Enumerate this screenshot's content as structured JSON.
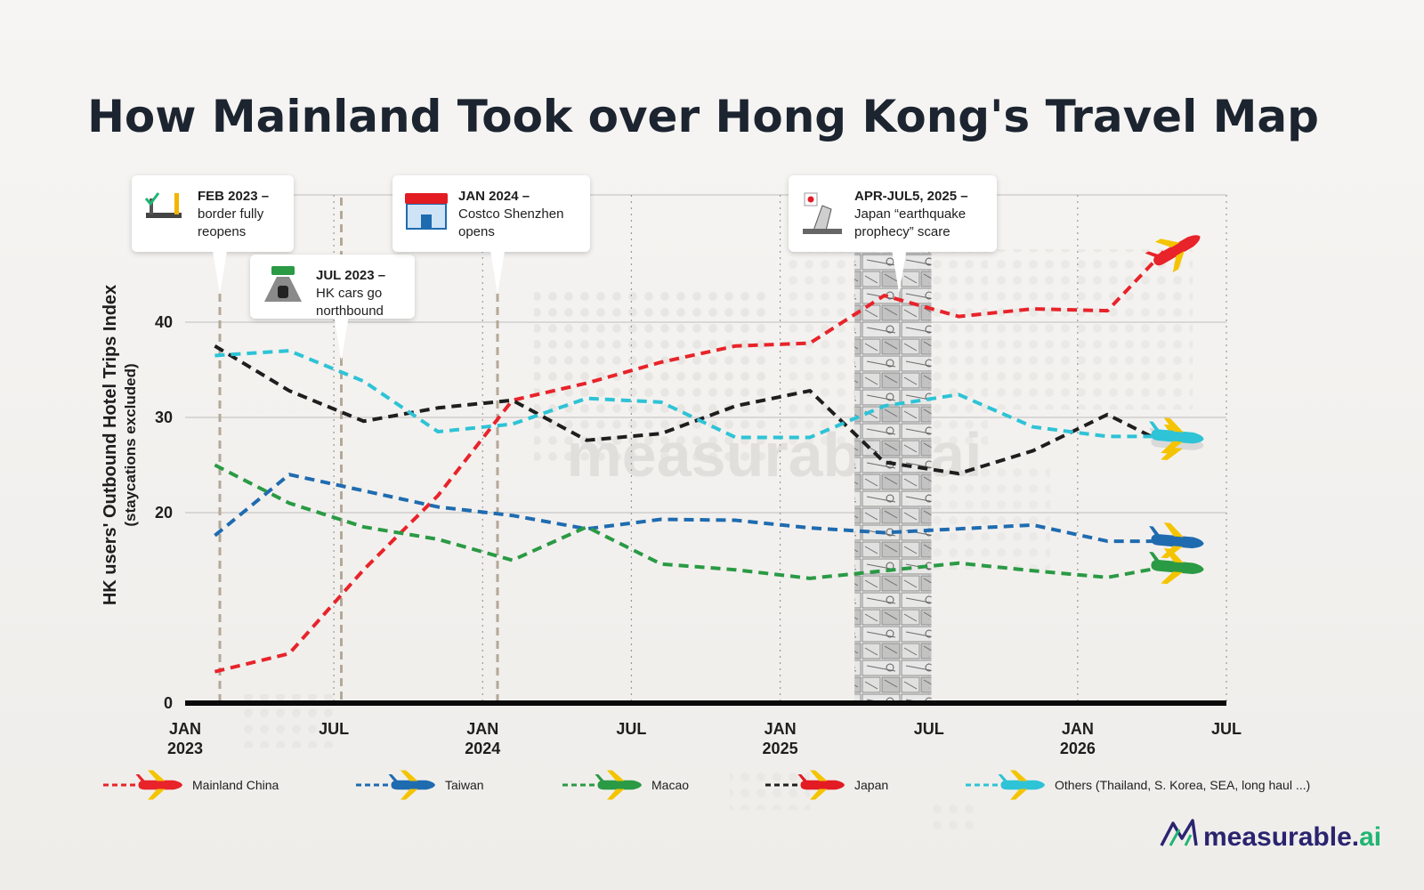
{
  "chart_data": {
    "type": "line",
    "title": "How Mainland Took over Hong Kong's Travel Map",
    "ylabel": "HK users' Outbound Hotel Trips Index",
    "ylabel_sub": "(staycations excluded)",
    "ylim": [
      0,
      45
    ],
    "yticks": [
      "0",
      "20",
      "30",
      "40"
    ],
    "ytick_values": [
      0,
      20,
      30,
      40
    ],
    "x_start": "2023-01",
    "x_end": "2026-07",
    "xticks": [
      {
        "month": 0,
        "line1": "JAN",
        "line2": "2023"
      },
      {
        "month": 6,
        "line1": "JUL",
        "line2": ""
      },
      {
        "month": 12,
        "line1": "JAN",
        "line2": "2024"
      },
      {
        "month": 18,
        "line1": "JUL",
        "line2": ""
      },
      {
        "month": 24,
        "line1": "JAN",
        "line2": "2025"
      },
      {
        "month": 30,
        "line1": "JUL",
        "line2": ""
      },
      {
        "month": 36,
        "line1": "JAN",
        "line2": "2026"
      },
      {
        "month": 42,
        "line1": "JUL",
        "line2": ""
      }
    ],
    "grid": true,
    "legend_position": "bottom",
    "x": [
      "2023-02",
      "2023-05",
      "2023-08",
      "2023-11",
      "2024-02",
      "2024-05",
      "2024-08",
      "2024-11",
      "2025-02",
      "2025-05",
      "2025-08",
      "2025-11",
      "2026-02",
      "2026-04"
    ],
    "x_months": [
      1.2,
      4.2,
      7.2,
      10.2,
      13.2,
      16.2,
      19.2,
      22.2,
      25.2,
      28.2,
      31.2,
      34.2,
      37.2,
      39.5
    ],
    "series": [
      {
        "name": "Mainland China",
        "color": "#e8232a",
        "icon": "china-flag-plane-icon",
        "values": [
          3.3,
          5.2,
          14.0,
          21.8,
          31.8,
          33.6,
          35.8,
          37.5,
          37.8,
          42.8,
          40.6,
          41.4,
          41.2,
          47.5
        ]
      },
      {
        "name": "Taiwan",
        "color": "#1f6bb0",
        "icon": "taiwan-flag-plane-icon",
        "values": [
          17.6,
          24.0,
          22.3,
          20.6,
          19.7,
          18.3,
          19.3,
          19.2,
          18.4,
          17.9,
          18.3,
          18.7,
          17.0,
          17.0
        ]
      },
      {
        "name": "Macao",
        "color": "#2a9a44",
        "icon": "macao-flag-plane-icon",
        "values": [
          25.0,
          21.0,
          18.5,
          17.2,
          15.0,
          18.5,
          14.6,
          14.0,
          13.1,
          13.9,
          14.7,
          13.9,
          13.2,
          14.3
        ]
      },
      {
        "name": "Japan",
        "color": "#1e1e1e",
        "icon": "japan-flag-plane-icon",
        "values": [
          37.5,
          32.8,
          29.6,
          31.0,
          31.8,
          27.6,
          28.3,
          31.2,
          32.8,
          25.3,
          24.1,
          26.5,
          30.3,
          27.3
        ]
      },
      {
        "name": "Others (Thailand, S. Korea, SEA, long haul ...)",
        "color": "#2ec3d6",
        "icon": "others-plane-icon",
        "values": [
          36.5,
          37.0,
          33.8,
          28.5,
          29.3,
          32.0,
          31.6,
          27.9,
          27.9,
          31.2,
          32.4,
          29.0,
          28.0,
          28.0
        ]
      }
    ],
    "annotations": [
      {
        "month": 1.4,
        "bold": "FEB 2023 –",
        "lines": [
          "border fully",
          "reopens"
        ],
        "icon": "border-gate-icon"
      },
      {
        "month": 6.3,
        "bold": "JUL 2023 –",
        "lines": [
          "HK cars go",
          "northbound"
        ],
        "icon": "car-on-road-icon"
      },
      {
        "month": 12.6,
        "bold": "JAN 2024 –",
        "lines": [
          "Costco Shenzhen",
          "opens"
        ],
        "icon": "costco-store-icon"
      },
      {
        "month": 28.8,
        "bold": "APR-JUL5, 2025 –",
        "lines": [
          "Japan “earthquake",
          "prophecy” scare"
        ],
        "icon": "earthquake-building-icon"
      }
    ],
    "highlight_band": {
      "from_month": 27.0,
      "to_month": 30.1,
      "label": "manga-panel-band"
    }
  },
  "brand": {
    "logo_text": "measurable.",
    "logo_suffix": "ai",
    "watermark": "measurable.ai",
    "logo_color": "#2a2470",
    "accent": "#21b573"
  }
}
